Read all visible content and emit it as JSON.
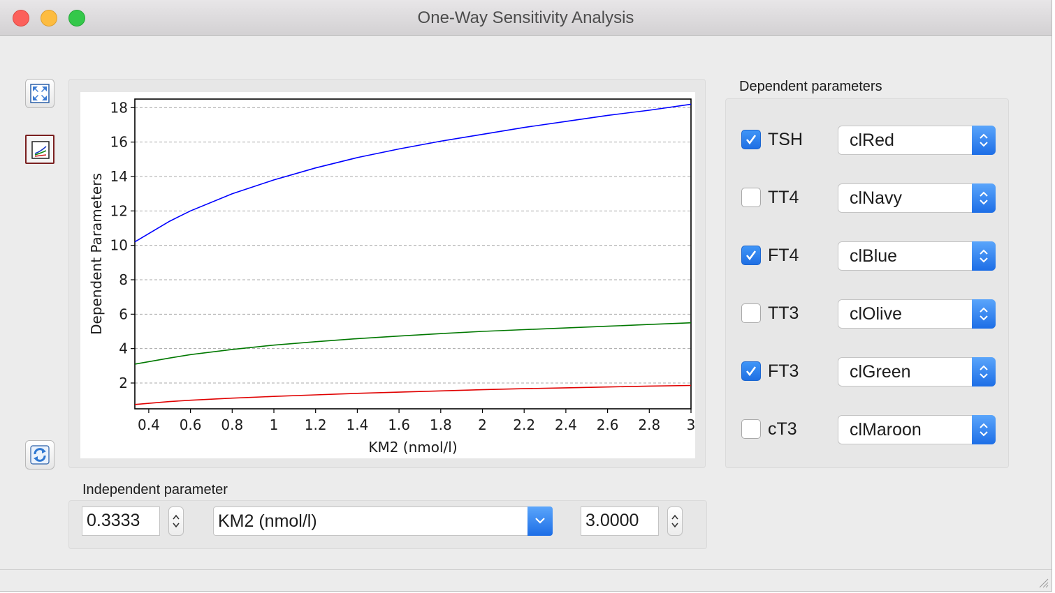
{
  "window": {
    "title": "One-Way Sensitivity Analysis"
  },
  "toolbar": {
    "icons": [
      "fullscreen-icon",
      "chart-icon",
      "refresh-icon"
    ]
  },
  "chart_data": {
    "type": "line",
    "title": "",
    "xlabel": "KM2 (nmol/l)",
    "ylabel": "Dependent Parameters",
    "xlim": [
      0.3333,
      3.0
    ],
    "ylim": [
      0.5,
      18.5
    ],
    "x_ticks": [
      "0.4",
      "0.6",
      "0.8",
      "1",
      "1.2",
      "1.4",
      "1.6",
      "1.8",
      "2",
      "2.2",
      "2.4",
      "2.6",
      "2.8",
      "3"
    ],
    "x_tick_values": [
      0.4,
      0.6,
      0.8,
      1.0,
      1.2,
      1.4,
      1.6,
      1.8,
      2.0,
      2.2,
      2.4,
      2.6,
      2.8,
      3.0
    ],
    "y_ticks": [
      "2",
      "4",
      "6",
      "8",
      "10",
      "12",
      "14",
      "16",
      "18"
    ],
    "y_tick_values": [
      2,
      4,
      6,
      8,
      10,
      12,
      14,
      16,
      18
    ],
    "grid": "horizontal-dashed",
    "x": [
      0.3333,
      0.5,
      0.6,
      0.8,
      1.0,
      1.2,
      1.4,
      1.6,
      1.8,
      2.0,
      2.2,
      2.4,
      2.6,
      2.8,
      3.0
    ],
    "series": [
      {
        "color": "#0000ff",
        "values": [
          10.2,
          11.4,
          12.0,
          13.0,
          13.8,
          14.5,
          15.1,
          15.6,
          16.05,
          16.45,
          16.85,
          17.2,
          17.55,
          17.85,
          18.2
        ]
      },
      {
        "color": "#007800",
        "values": [
          3.1,
          3.45,
          3.65,
          3.95,
          4.2,
          4.4,
          4.58,
          4.73,
          4.87,
          5.0,
          5.1,
          5.2,
          5.3,
          5.4,
          5.5
        ]
      },
      {
        "color": "#e00000",
        "values": [
          0.75,
          0.92,
          1.0,
          1.12,
          1.22,
          1.31,
          1.4,
          1.47,
          1.54,
          1.61,
          1.67,
          1.72,
          1.77,
          1.82,
          1.86
        ]
      }
    ]
  },
  "dependent": {
    "label": "Dependent parameters",
    "items": [
      {
        "name": "TSH",
        "checked": true,
        "color": "clRed"
      },
      {
        "name": "TT4",
        "checked": false,
        "color": "clNavy"
      },
      {
        "name": "FT4",
        "checked": true,
        "color": "clBlue"
      },
      {
        "name": "TT3",
        "checked": false,
        "color": "clOlive"
      },
      {
        "name": "FT3",
        "checked": true,
        "color": "clGreen"
      },
      {
        "name": "cT3",
        "checked": false,
        "color": "clMaroon"
      }
    ]
  },
  "independent": {
    "label": "Independent parameter",
    "min_value": "0.3333",
    "parameter": "KM2 (nmol/l)",
    "max_value": "3.0000"
  }
}
